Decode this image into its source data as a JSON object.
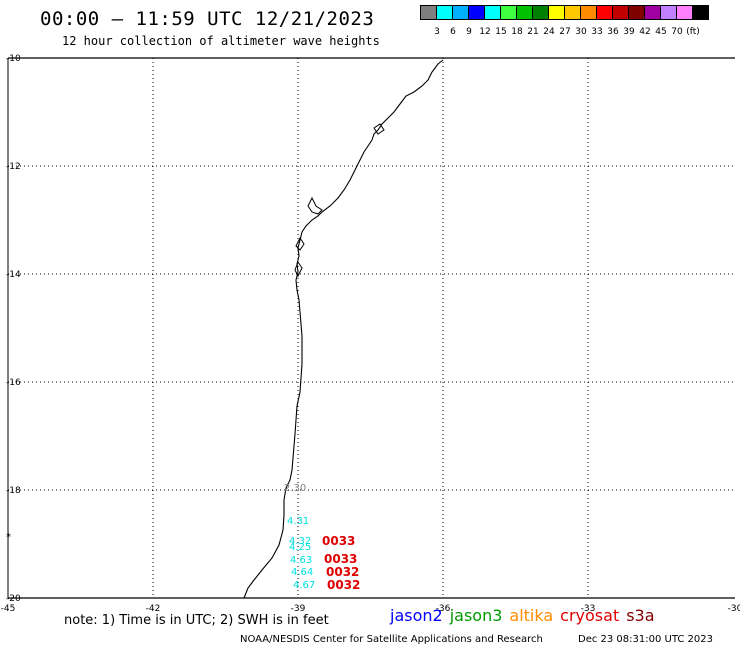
{
  "header": {
    "title": "00:00 – 11:59 UTC 12/21/2023",
    "subtitle": "12 hour collection of altimeter wave heights"
  },
  "color_scale": {
    "colors": [
      "#7f7f7f",
      "#00ffff",
      "#00b0ff",
      "#0000ff",
      "#00ffff",
      "#40ff40",
      "#00c000",
      "#008000",
      "#ffff00",
      "#ffc800",
      "#ff8c00",
      "#ff0000",
      "#c00000",
      "#800000",
      "#a000a0",
      "#c080ff",
      "#ff80ff",
      "#000000"
    ],
    "labels": [
      "3",
      "6",
      "9",
      "12",
      "15",
      "18",
      "21",
      "24",
      "27",
      "30",
      "33",
      "36",
      "39",
      "42",
      "45",
      "70",
      "(ft)"
    ]
  },
  "map": {
    "lat_labels": [
      "-10",
      "-12",
      "-14",
      "-16",
      "-18",
      "-20"
    ],
    "lon_labels": [
      "-45",
      "-42",
      "-39",
      "-36",
      "-33",
      "-30"
    ],
    "wave_labels": [
      {
        "text": "2.30",
        "color": "#808080"
      },
      {
        "text": "4.31",
        "color": "#00e0e0"
      },
      {
        "text": "4.32",
        "color": "#00e0e0"
      },
      {
        "text": "4.25",
        "color": "#00e0e0"
      },
      {
        "text": "4.63",
        "color": "#00e0e0"
      },
      {
        "text": "4.64",
        "color": "#00e0e0"
      },
      {
        "text": "4.67",
        "color": "#00e0e0"
      }
    ],
    "time_labels": [
      {
        "text": "0033",
        "color": "#e00000"
      },
      {
        "text": "0033",
        "color": "#e00000"
      },
      {
        "text": "0032",
        "color": "#e00000"
      },
      {
        "text": "0032",
        "color": "#e00000"
      }
    ]
  },
  "note": "note: 1) Time is in UTC; 2) SWH is in feet",
  "satellites": [
    {
      "name": "jason2",
      "color": "#0000ff"
    },
    {
      "name": "jason3",
      "color": "#009900"
    },
    {
      "name": "altika",
      "color": "#ff8c00"
    },
    {
      "name": "cryosat",
      "color": "#e00000"
    },
    {
      "name": "s3a",
      "color": "#800000"
    }
  ],
  "footer": {
    "credit": "NOAA/NESDIS Center for Satellite Applications and Research",
    "timestamp": "Dec 23 08:31:00 UTC 2023"
  }
}
